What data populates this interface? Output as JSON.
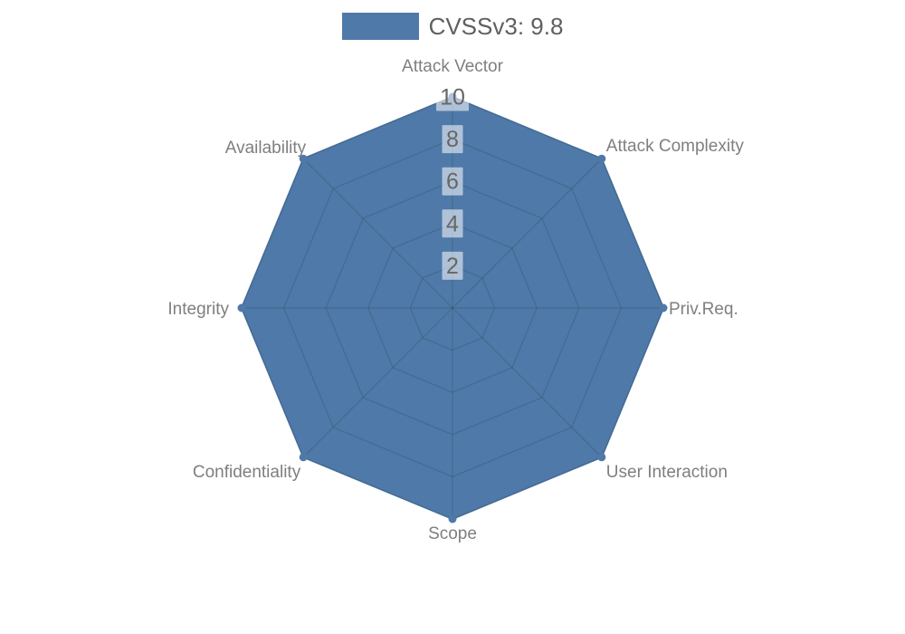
{
  "legend": {
    "label": "CVSSv3: 9.8"
  },
  "chart_data": {
    "type": "radar",
    "title": "",
    "categories": [
      "Attack Vector",
      "Attack Complexity",
      "Priv.Req.",
      "User Interaction",
      "Scope",
      "Confidentiality",
      "Integrity",
      "Availability"
    ],
    "series": [
      {
        "name": "CVSSv3: 9.8",
        "values": [
          10,
          10,
          10,
          10,
          10,
          10,
          10,
          10
        ],
        "color": "#4e79a8"
      }
    ],
    "radial_ticks": [
      2,
      4,
      6,
      8,
      10
    ],
    "rlim": [
      0,
      10
    ],
    "grid": true,
    "grid_shape": "polygon",
    "legend_position": "top",
    "colors": {
      "fill": "#4e79a8",
      "line": "#4e79a8",
      "gridline": "rgba(40,40,40,0.18)",
      "axis_label": "#7f7f7f",
      "tick_label": "#666666",
      "tick_box": "rgba(255,255,255,0.55)"
    }
  }
}
